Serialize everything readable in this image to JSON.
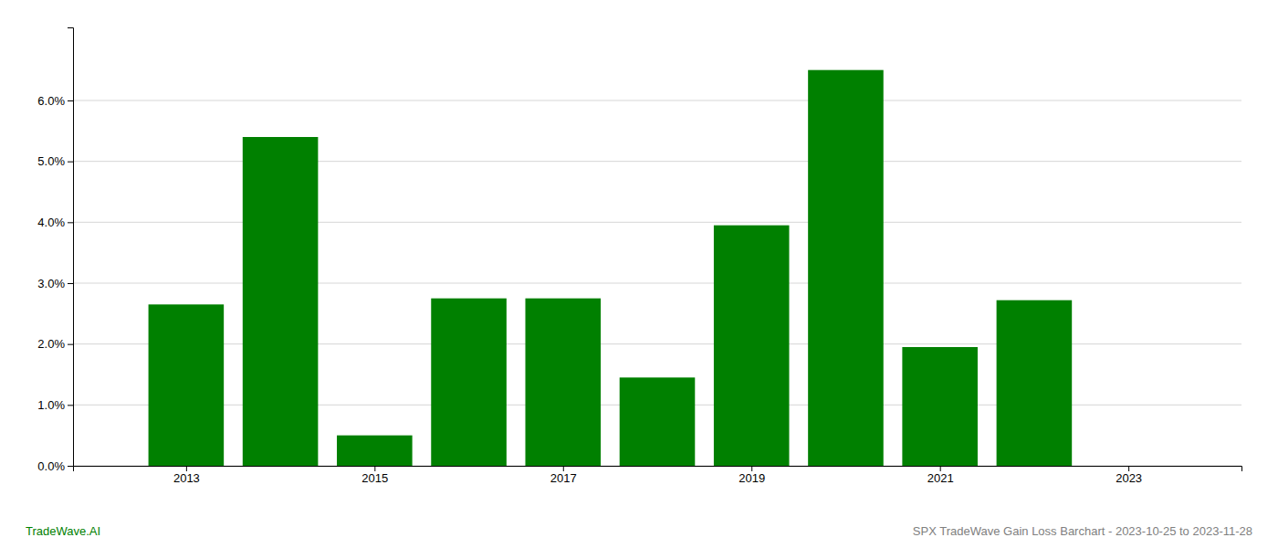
{
  "chart_data": {
    "type": "bar",
    "x": [
      2013,
      2014,
      2015,
      2016,
      2017,
      2018,
      2019,
      2020,
      2021,
      2022,
      2023
    ],
    "values": [
      0.0265,
      0.054,
      0.005,
      0.0275,
      0.0275,
      0.0145,
      0.0395,
      0.065,
      0.0195,
      0.0272,
      0.0
    ],
    "color": "#008000",
    "xlim": [
      2011.8,
      2024.2
    ],
    "xticks": [
      2013,
      2015,
      2017,
      2019,
      2021,
      2023
    ],
    "ylim": [
      0.0,
      0.072
    ],
    "yticks": [
      {
        "value": 0.0,
        "label": "0.0%"
      },
      {
        "value": 0.01,
        "label": "1.0%"
      },
      {
        "value": 0.02,
        "label": "2.0%"
      },
      {
        "value": 0.03,
        "label": "3.0%"
      },
      {
        "value": 0.04,
        "label": "4.0%"
      },
      {
        "value": 0.05,
        "label": "5.0%"
      },
      {
        "value": 0.06,
        "label": "6.0%"
      }
    ],
    "grid": true,
    "annotations": [
      {
        "text": "TradeWave.AI",
        "color": "#008000"
      },
      {
        "text": "SPX TradeWave Gain Loss Barchart - 2023-10-25 to 2023-11-28",
        "color": "#808080"
      }
    ]
  }
}
